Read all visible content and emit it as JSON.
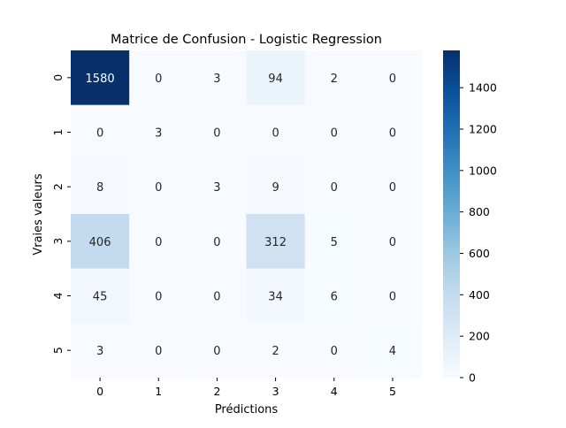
{
  "chart_data": {
    "type": "heatmap",
    "title": "Matrice de Confusion - Logistic Regression",
    "xlabel": "Prédictions",
    "ylabel": "Vraies valeurs",
    "x_categories": [
      "0",
      "1",
      "2",
      "3",
      "4",
      "5"
    ],
    "y_categories": [
      "0",
      "1",
      "2",
      "3",
      "4",
      "5"
    ],
    "values": [
      [
        1580,
        0,
        3,
        94,
        2,
        0
      ],
      [
        0,
        3,
        0,
        0,
        0,
        0
      ],
      [
        8,
        0,
        3,
        9,
        0,
        0
      ],
      [
        406,
        0,
        0,
        312,
        5,
        0
      ],
      [
        45,
        0,
        0,
        34,
        6,
        0
      ],
      [
        3,
        0,
        0,
        2,
        0,
        4
      ]
    ],
    "colorbar": {
      "colormap": "Blues",
      "vmin": 0,
      "vmax": 1580,
      "ticks": [
        0,
        200,
        400,
        600,
        800,
        1000,
        1200,
        1400
      ]
    },
    "annot_dark_color": "#ffffff",
    "annot_light_color": "#262626"
  }
}
